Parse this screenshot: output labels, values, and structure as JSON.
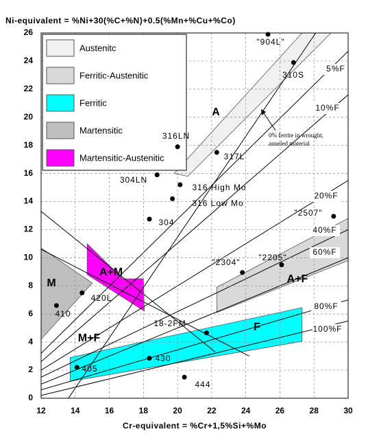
{
  "chart_data": {
    "type": "scatter",
    "title": "Ni-equivalent = %Ni+30(%C+%N)+0.5(%Mn+%Cu+%Co)",
    "x_label": "Cr-equivalent = %Cr+1,5%Si+%Mo",
    "xlim": [
      12,
      30
    ],
    "ylim": [
      0,
      26
    ],
    "xticks": [
      12,
      14,
      16,
      18,
      20,
      22,
      24,
      26,
      28,
      30
    ],
    "yticks": [
      0,
      2,
      4,
      6,
      8,
      10,
      12,
      14,
      16,
      18,
      20,
      22,
      24,
      26
    ],
    "grid": true,
    "regions": [
      {
        "name": "Austenitc",
        "color": "#f0f0f0",
        "x": [
          19.8,
          27.3,
          29.0,
          20.6
        ],
        "y": [
          16.0,
          26.0,
          26.0,
          15.8
        ]
      },
      {
        "name": "Ferritic-Austenitic",
        "color": "#d9d9d9",
        "x": [
          22.3,
          30.0,
          30.0,
          22.3
        ],
        "y": [
          7.9,
          12.8,
          9.8,
          6.1
        ]
      },
      {
        "name": "Ferritic",
        "color": "#00ffff",
        "x": [
          13.7,
          27.3,
          27.3,
          13.7
        ],
        "y": [
          2.9,
          6.45,
          4.05,
          1.2
        ]
      },
      {
        "name": "Martensitic",
        "color": "#bfbfbf",
        "x": [
          12.0,
          15.0,
          12.0
        ],
        "y": [
          10.7,
          8.2,
          4.2
        ]
      },
      {
        "name": "Martensitic-Austenitic",
        "color": "#ff00ff",
        "x": [
          14.7,
          16.8,
          18.0,
          18.05,
          14.7
        ],
        "y": [
          11.0,
          8.5,
          8.5,
          6.2,
          8.8
        ]
      }
    ],
    "ferrite_lines": [
      {
        "label": "5%F",
        "x": [
          12,
          30
        ],
        "y": [
          3.2,
          24.7
        ]
      },
      {
        "label": "10%F",
        "x": [
          12,
          30
        ],
        "y": [
          2.6,
          21.6
        ]
      },
      {
        "label": "20%F",
        "x": [
          12,
          30
        ],
        "y": [
          2.0,
          15.5
        ]
      },
      {
        "label": "40%F",
        "x": [
          12,
          30
        ],
        "y": [
          1.5,
          12.0
        ]
      },
      {
        "label": "60%F",
        "x": [
          12,
          30
        ],
        "y": [
          1.0,
          10.0
        ]
      },
      {
        "label": "80%F",
        "x": [
          12,
          30
        ],
        "y": [
          0.6,
          7.0
        ]
      },
      {
        "label": "100%F",
        "x": [
          12,
          30
        ],
        "y": [
          0.2,
          5.5
        ]
      }
    ],
    "boundaries": [
      {
        "x": [
          13.6,
          28.1
        ],
        "y": [
          0,
          26
        ]
      },
      {
        "x": [
          12,
          22.2
        ],
        "y": [
          13.3,
          3.3
        ]
      },
      {
        "x": [
          12,
          24.2
        ],
        "y": [
          10.6,
          3.0
        ]
      }
    ],
    "phase_labels": [
      "A",
      "A+M",
      "M",
      "M+F",
      "F",
      "A+F"
    ],
    "annotation": [
      "0% ferrite in wrought,",
      "anneled material"
    ],
    "points": {
      "names": [
        "\"904L\"",
        "310S",
        "316LN",
        "317L",
        "304LN",
        "316 High Mo",
        "316 Low Mo",
        "304",
        "\"2507\"",
        "\"2304\"",
        "\"2205\"",
        "420L",
        "410",
        "18-2FM",
        "430",
        "405",
        "444"
      ],
      "x": [
        25.3,
        26.8,
        20.0,
        22.3,
        18.8,
        20.15,
        19.7,
        18.35,
        29.15,
        23.8,
        26.1,
        14.4,
        12.9,
        21.7,
        18.35,
        14.1,
        20.4
      ],
      "y": [
        25.9,
        23.9,
        17.9,
        17.5,
        15.9,
        15.2,
        14.2,
        12.75,
        12.95,
        8.95,
        9.5,
        7.5,
        6.6,
        4.65,
        2.85,
        2.2,
        1.5
      ]
    }
  }
}
